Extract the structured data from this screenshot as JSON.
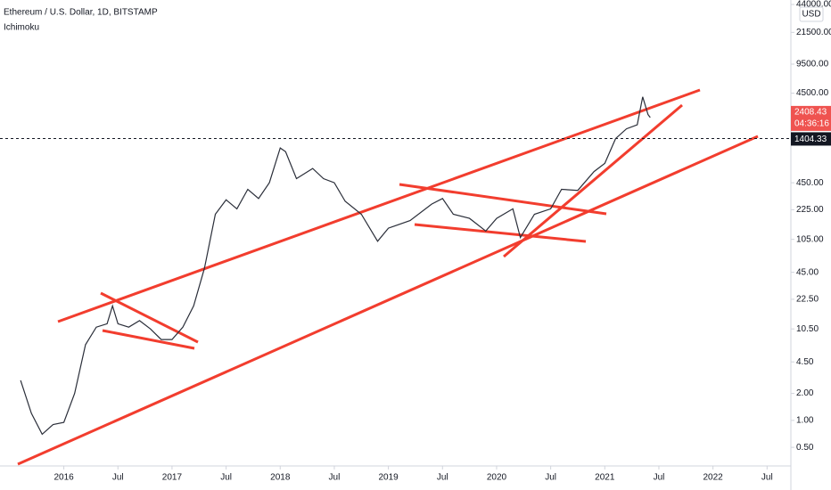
{
  "chart_data": {
    "type": "line",
    "title": "Ethereum / U.S. Dollar, 1D, BITSTAMP",
    "indicator": "Ichimoku",
    "currency": "USD",
    "log_scale": true,
    "x": [
      2015.6,
      2015.7,
      2015.8,
      2015.9,
      2016.0,
      2016.1,
      2016.2,
      2016.3,
      2016.4,
      2016.45,
      2016.5,
      2016.6,
      2016.7,
      2016.8,
      2016.9,
      2017.0,
      2017.1,
      2017.2,
      2017.3,
      2017.4,
      2017.5,
      2017.6,
      2017.7,
      2017.8,
      2017.9,
      2018.0,
      2018.05,
      2018.15,
      2018.3,
      2018.4,
      2018.5,
      2018.6,
      2018.75,
      2018.9,
      2019.0,
      2019.2,
      2019.4,
      2019.5,
      2019.6,
      2019.75,
      2019.9,
      2020.0,
      2020.15,
      2020.22,
      2020.35,
      2020.5,
      2020.6,
      2020.75,
      2020.9,
      2021.0,
      2021.1,
      2021.2,
      2021.3,
      2021.35,
      2021.4,
      2021.42
    ],
    "series": [
      {
        "name": "ETHUSD",
        "color": "#2a2e39",
        "values": [
          2.8,
          1.2,
          0.7,
          0.9,
          0.95,
          2,
          7,
          11,
          12,
          19,
          12,
          11,
          13,
          10.5,
          8,
          8,
          11,
          19,
          50,
          200,
          290,
          230,
          380,
          300,
          450,
          1100,
          1000,
          500,
          650,
          500,
          450,
          280,
          200,
          100,
          140,
          170,
          260,
          300,
          200,
          180,
          130,
          180,
          230,
          110,
          200,
          230,
          380,
          370,
          600,
          740,
          1400,
          1800,
          2000,
          4100,
          2600,
          2408.43
        ]
      }
    ],
    "xlim": [
      2015.41,
      2022.72
    ],
    "xticks": [
      {
        "value": 2016,
        "label": "2016"
      },
      {
        "value": 2016.5,
        "label": "Jul"
      },
      {
        "value": 2017,
        "label": "2017"
      },
      {
        "value": 2017.5,
        "label": "Jul"
      },
      {
        "value": 2018,
        "label": "2018"
      },
      {
        "value": 2018.5,
        "label": "Jul"
      },
      {
        "value": 2019,
        "label": "2019"
      },
      {
        "value": 2019.5,
        "label": "Jul"
      },
      {
        "value": 2020,
        "label": "2020"
      },
      {
        "value": 2020.5,
        "label": "Jul"
      },
      {
        "value": 2021,
        "label": "2021"
      },
      {
        "value": 2021.5,
        "label": "Jul"
      },
      {
        "value": 2022,
        "label": "2022"
      },
      {
        "value": 2022.5,
        "label": "Jul"
      }
    ],
    "ylim": [
      0.31,
      49400
    ],
    "yticks": [
      {
        "value": 0.5,
        "label": "0.50"
      },
      {
        "value": 1,
        "label": "1.00"
      },
      {
        "value": 2,
        "label": "2.00"
      },
      {
        "value": 4.5,
        "label": "4.50"
      },
      {
        "value": 10.5,
        "label": "10.50"
      },
      {
        "value": 22.5,
        "label": "22.50"
      },
      {
        "value": 45,
        "label": "45.00"
      },
      {
        "value": 105,
        "label": "105.00"
      },
      {
        "value": 225,
        "label": "225.00"
      },
      {
        "value": 450,
        "label": "450.00"
      },
      {
        "value": 4500,
        "label": "4500.00"
      },
      {
        "value": 9500,
        "label": "9500.00"
      },
      {
        "value": 21500,
        "label": "21500.00"
      },
      {
        "value": 44000,
        "label": "44000.00"
      }
    ],
    "last_price": 2408.43,
    "countdown": "04:36:16",
    "level": 1404.33
  }
}
